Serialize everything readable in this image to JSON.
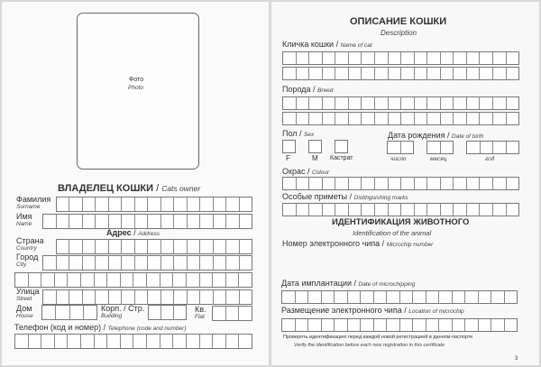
{
  "left_page": {
    "photo": {
      "label": "Фото",
      "label_en": "Photo"
    },
    "owner_title": "ВЛАДЕЛЕЦ КОШКИ",
    "owner_title_en": "Cats owner",
    "surname": {
      "label": "Фамилия",
      "label_en": "Surname"
    },
    "name": {
      "label": "Имя",
      "label_en": "Name"
    },
    "address": {
      "label": "Адрес",
      "label_en": "Address"
    },
    "country": {
      "label": "Страна",
      "label_en": "Country"
    },
    "city": {
      "label": "Город",
      "label_en": "City"
    },
    "street": {
      "label": "Улица",
      "label_en": "Street"
    },
    "house": {
      "label": "Дом",
      "label_en": "House"
    },
    "building": {
      "label": "Корп. / Стр.",
      "label_en": "Building"
    },
    "flat": {
      "label": "Кв.",
      "label_en": "Flat"
    },
    "phone": {
      "label": "Телефон (код и номер)",
      "label_en": "Telephone (code and number)"
    }
  },
  "right_page": {
    "title": "ОПИСАНИЕ КОШКИ",
    "title_en": "Description",
    "cat_name": {
      "label": "Кличка кошки",
      "label_en": "Name of cat"
    },
    "breed": {
      "label": "Порода",
      "label_en": "Breed"
    },
    "sex": {
      "label": "Пол",
      "label_en": "Sex",
      "options": [
        "F",
        "M",
        "Кастрат"
      ]
    },
    "birth": {
      "label": "Дата рождения",
      "label_en": "Date of birth",
      "parts": [
        "число",
        "месяц",
        "год"
      ]
    },
    "colour": {
      "label": "Окрас",
      "label_en": "Colour"
    },
    "marks": {
      "label": "Особые приметы",
      "label_en": "Distinguishing marks"
    },
    "id_title": "ИДЕНТИФИКАЦИЯ ЖИВОТНОГО",
    "id_title_en": "Identification of the animal",
    "chip": {
      "label": "Номер электронного чипа",
      "label_en": "Microchip number"
    },
    "implant": {
      "label": "Дата имплантации",
      "label_en": "Date of microchipping"
    },
    "location": {
      "label": "Размещение электронного чипа",
      "label_en": "Location of microchip"
    },
    "note": "Проверять идентификацию перед каждой новой регистрацией в данном паспорте",
    "note_en": "Verify the identification before each new registration in this certificate",
    "page_number": "3"
  }
}
